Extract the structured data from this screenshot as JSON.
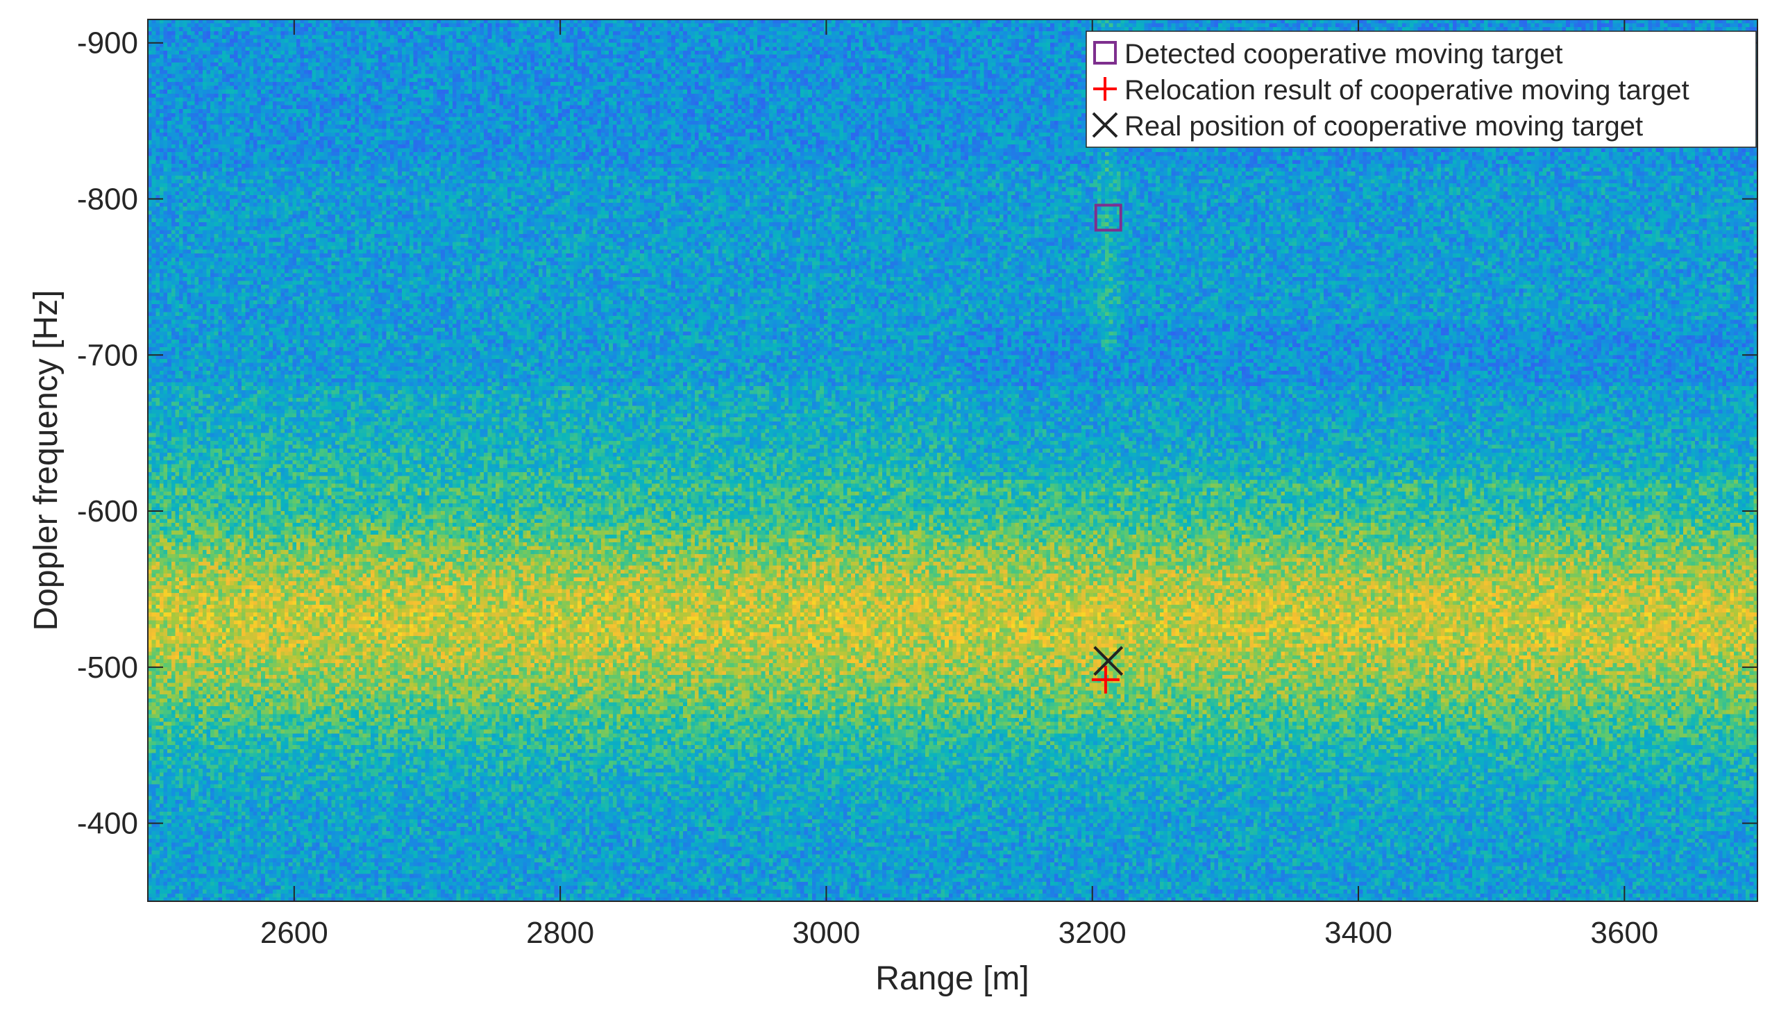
{
  "chart_data": {
    "type": "heatmap",
    "xlabel": "Range [m]",
    "ylabel": "Doppler frequency [Hz]",
    "xlim": [
      2490,
      3700
    ],
    "ylim": [
      -915,
      -350
    ],
    "y_axis_reversed": true,
    "x_ticks": [
      2600,
      2800,
      3000,
      3200,
      3400,
      3600
    ],
    "x_tick_labels": [
      "2600",
      "2800",
      "3000",
      "3200",
      "3400",
      "3600"
    ],
    "y_ticks": [
      -900,
      -800,
      -700,
      -600,
      -500,
      -400
    ],
    "y_tick_labels": [
      "-900",
      "-800",
      "-700",
      "-600",
      "-500",
      "-400"
    ],
    "colormap": "parula",
    "clutter_band_doppler": [
      -610,
      -450
    ],
    "legend_position": "top-right",
    "series": [
      {
        "name": "Detected cooperative moving target",
        "marker": "square",
        "color": "#7e2f8e",
        "x": 3212,
        "y": -788
      },
      {
        "name": "Relocation result of cooperative moving target",
        "marker": "plus",
        "color": "#ff0000",
        "x": 3210,
        "y": -492
      },
      {
        "name": "Real position of cooperative moving target",
        "marker": "x",
        "color": "#222222",
        "x": 3212,
        "y": -504
      }
    ]
  }
}
